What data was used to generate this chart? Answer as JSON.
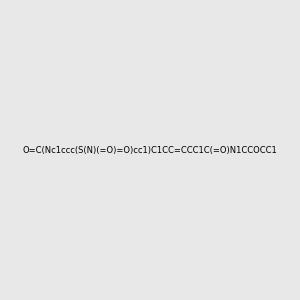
{
  "smiles": "O=C(Nc1ccc(S(N)(=O)=O)cc1)C1CC=CCC1C(=O)N1CCOCC1",
  "background_color": "#e8e8e8",
  "fig_size": [
    3.0,
    3.0
  ],
  "dpi": 100,
  "atom_colors": {
    "N": "#4682b4",
    "O": "#ff0000",
    "S": "#cccc00",
    "C": "#000000",
    "H": "#4682b4"
  }
}
